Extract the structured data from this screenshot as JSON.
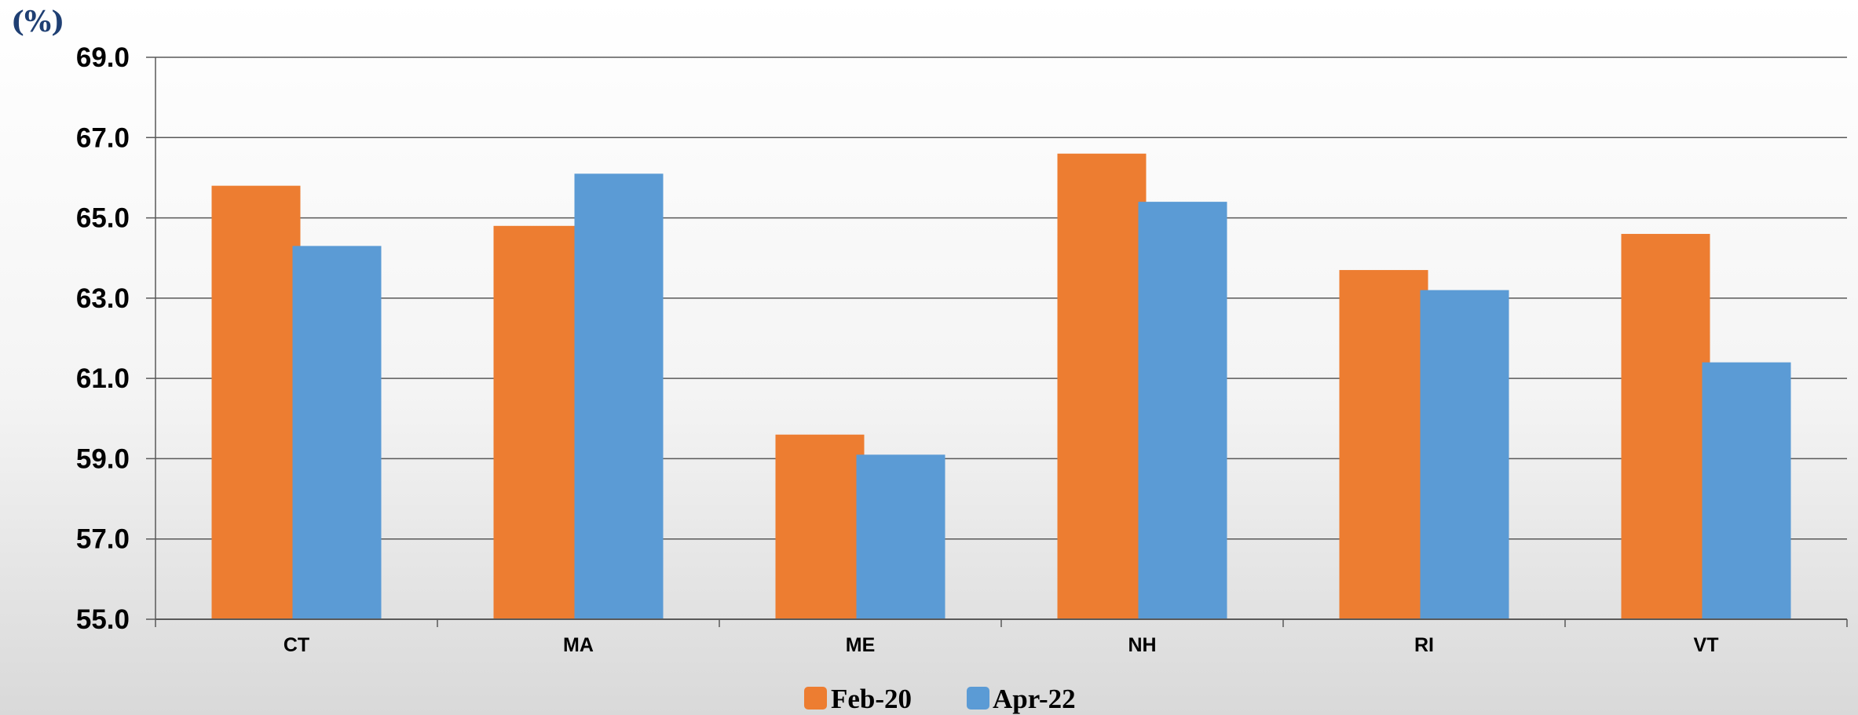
{
  "chart_data": {
    "type": "bar",
    "unit_label": "(%)",
    "categories": [
      "CT",
      "MA",
      "ME",
      "NH",
      "RI",
      "VT"
    ],
    "series": [
      {
        "name": "Feb-20",
        "color": "#ed7d31",
        "values": [
          65.8,
          64.8,
          59.6,
          66.6,
          63.7,
          64.6
        ]
      },
      {
        "name": "Apr-22",
        "color": "#5b9bd5",
        "values": [
          64.3,
          66.1,
          59.1,
          65.4,
          63.2,
          61.4
        ]
      }
    ],
    "y_ticks": [
      "69.0",
      "67.0",
      "65.0",
      "63.0",
      "61.0",
      "59.0",
      "57.0",
      "55.0"
    ],
    "ylim": [
      55,
      69
    ],
    "grid": true,
    "legend_position": "bottom-center"
  }
}
